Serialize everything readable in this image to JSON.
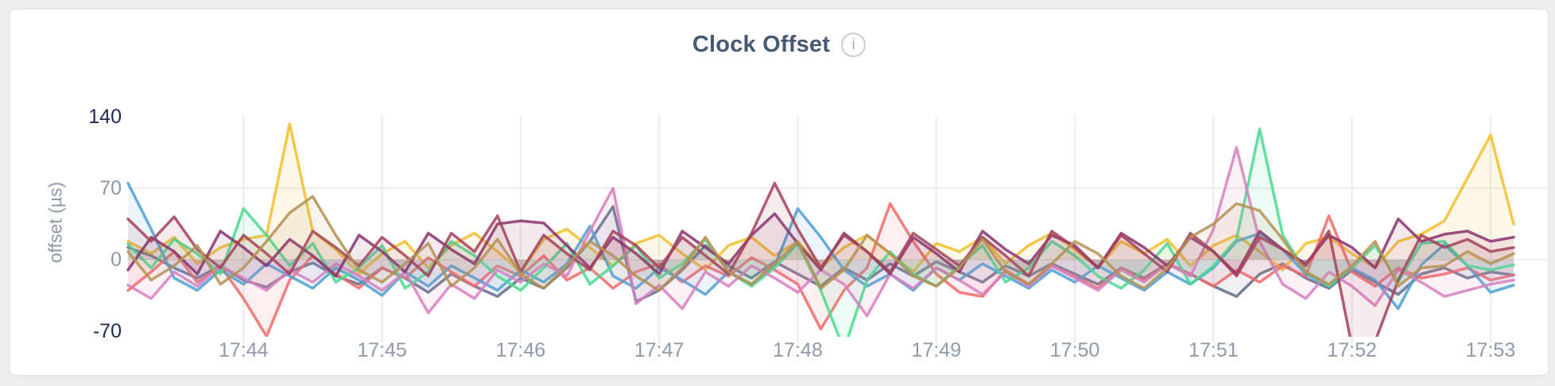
{
  "page": {
    "background": "#eeeef0"
  },
  "card": {
    "title": "Clock Offset",
    "info_glyph": "i",
    "title_color": "#475872",
    "background": "#ffffff",
    "border_color": "#e3e4e8"
  },
  "chart_data": {
    "type": "line",
    "title": "Clock Offset",
    "xlabel": "",
    "ylabel": "offset (µs)",
    "unit": "µs",
    "ylim": [
      -70,
      140
    ],
    "y_ticks": [
      140,
      70,
      0,
      -70
    ],
    "y_gridline_values": [
      70,
      0
    ],
    "grid": "on",
    "legend": "hidden",
    "x_start_label": "17:43:10",
    "x_step_seconds": 10,
    "x_ticks": [
      {
        "label": "17:44",
        "t": 50
      },
      {
        "label": "17:45",
        "t": 110
      },
      {
        "label": "17:46",
        "t": 170
      },
      {
        "label": "17:47",
        "t": 230
      },
      {
        "label": "17:48",
        "t": 290
      },
      {
        "label": "17:49",
        "t": 350
      },
      {
        "label": "17:50",
        "t": 410
      },
      {
        "label": "17:51",
        "t": 470
      },
      {
        "label": "17:52",
        "t": 530
      },
      {
        "label": "17:53",
        "t": 590
      }
    ],
    "axis_colors": {
      "tick_label": "#8e99a9",
      "domain_label": "#1d2c4e",
      "gridline": "#ececee"
    },
    "line_opacity": 0.85,
    "fill_opacity": 0.1,
    "line_width": 3.5,
    "series": [
      {
        "name": "series-1",
        "color": "#5F6C87",
        "values": [
          12,
          4,
          -8,
          -18,
          -6,
          -20,
          -27,
          -12,
          -3,
          -16,
          -24,
          -8,
          -18,
          -32,
          -14,
          -26,
          -36,
          -18,
          -28,
          -8,
          18,
          52,
          -41,
          -30,
          -10,
          14,
          -6,
          -18,
          -2,
          -14,
          -26,
          -8,
          -20,
          -4,
          -16,
          -2,
          -12,
          -22,
          -6,
          -16,
          -4,
          -14,
          -24,
          -8,
          -18,
          -4,
          -14,
          -26,
          -36,
          -14,
          -4,
          -18,
          -28,
          -10,
          -22,
          -34,
          -14,
          -8,
          -18,
          -12,
          -15
        ]
      },
      {
        "name": "series-2",
        "color": "#F2BE2C",
        "values": [
          18,
          6,
          22,
          -4,
          12,
          20,
          24,
          133,
          28,
          10,
          -14,
          6,
          18,
          -8,
          14,
          26,
          8,
          -12,
          20,
          30,
          12,
          -6,
          16,
          24,
          6,
          -10,
          14,
          22,
          4,
          18,
          -8,
          12,
          24,
          6,
          -12,
          16,
          8,
          22,
          -4,
          14,
          26,
          10,
          -8,
          18,
          6,
          20,
          -6,
          14,
          24,
          8,
          -10,
          16,
          22,
          6,
          -8,
          18,
          25,
          38,
          80,
          122,
          35
        ]
      },
      {
        "name": "series-3",
        "color": "#F16969",
        "values": [
          -30,
          -12,
          8,
          -22,
          -6,
          -38,
          -75,
          -20,
          4,
          -14,
          -28,
          -8,
          -18,
          2,
          -12,
          -26,
          -6,
          -16,
          4,
          -20,
          -8,
          -28,
          -12,
          -4,
          -22,
          -6,
          -16,
          2,
          -10,
          -24,
          -68,
          -30,
          -8,
          55,
          18,
          -14,
          -32,
          -36,
          -10,
          -24,
          -6,
          -16,
          -28,
          -8,
          -20,
          -4,
          -14,
          -26,
          -10,
          -22,
          -6,
          -16,
          43,
          -12,
          -26,
          -8,
          -18,
          -14,
          -8,
          -20,
          -15
        ]
      },
      {
        "name": "series-4",
        "color": "#4E9FD1",
        "values": [
          75,
          30,
          -18,
          -30,
          -10,
          -24,
          -4,
          -16,
          -28,
          -8,
          -20,
          -35,
          -12,
          -26,
          -6,
          -18,
          -30,
          -10,
          -22,
          -4,
          33,
          -16,
          -28,
          -8,
          -20,
          -34,
          -12,
          -24,
          -6,
          50,
          22,
          -10,
          -26,
          -14,
          -30,
          -8,
          -20,
          -4,
          -16,
          -28,
          -10,
          -22,
          -6,
          -18,
          -30,
          -12,
          -24,
          -8,
          18,
          26,
          10,
          -14,
          -26,
          -8,
          -20,
          -48,
          -5,
          15,
          -6,
          -32,
          -25
        ]
      },
      {
        "name": "series-5",
        "color": "#49D990",
        "values": [
          15,
          -8,
          20,
          6,
          -14,
          50,
          24,
          -6,
          16,
          -22,
          -8,
          14,
          -28,
          -12,
          18,
          4,
          -16,
          -30,
          -8,
          16,
          -24,
          -6,
          14,
          -18,
          -4,
          20,
          -12,
          -26,
          -8,
          16,
          -30,
          -88,
          -20,
          8,
          -14,
          -26,
          -6,
          14,
          -22,
          -8,
          18,
          4,
          -16,
          -28,
          -10,
          16,
          -24,
          -6,
          20,
          128,
          24,
          -12,
          -26,
          -8,
          14,
          -22,
          16,
          18,
          -6,
          -10,
          -5
        ]
      },
      {
        "name": "series-6",
        "color": "#D77FBF",
        "values": [
          -25,
          -38,
          -12,
          -26,
          -6,
          -18,
          -30,
          -10,
          -22,
          -4,
          -16,
          -30,
          -12,
          -52,
          -24,
          -38,
          -10,
          -22,
          -4,
          -16,
          28,
          70,
          -43,
          -25,
          -48,
          -12,
          -26,
          -6,
          -18,
          -32,
          -10,
          -24,
          -55,
          -14,
          -28,
          -8,
          -20,
          -34,
          -12,
          -26,
          -6,
          -18,
          -30,
          -10,
          -22,
          -4,
          -16,
          30,
          110,
          18,
          -24,
          -38,
          -12,
          -26,
          -45,
          -10,
          -22,
          -36,
          -30,
          -24,
          -20
        ]
      },
      {
        "name": "series-7",
        "color": "#87326D",
        "values": [
          -10,
          22,
          8,
          -14,
          28,
          12,
          -6,
          20,
          4,
          -16,
          24,
          8,
          -12,
          26,
          10,
          -4,
          35,
          38,
          36,
          14,
          -8,
          22,
          6,
          -14,
          28,
          12,
          -4,
          24,
          45,
          16,
          -10,
          26,
          8,
          -14,
          22,
          6,
          -12,
          28,
          10,
          -4,
          24,
          14,
          -8,
          26,
          12,
          -6,
          22,
          8,
          -14,
          28,
          10,
          -4,
          24,
          12,
          -8,
          40,
          18,
          25,
          28,
          18,
          22
        ]
      },
      {
        "name": "series-8",
        "color": "#A3415B",
        "values": [
          40,
          18,
          42,
          10,
          -8,
          24,
          6,
          -14,
          28,
          12,
          -6,
          22,
          4,
          -16,
          26,
          8,
          43,
          -12,
          24,
          6,
          -10,
          28,
          14,
          -8,
          22,
          4,
          -14,
          26,
          75,
          30,
          -8,
          24,
          8,
          -12,
          26,
          10,
          -6,
          22,
          4,
          -16,
          28,
          12,
          -8,
          24,
          6,
          -12,
          26,
          8,
          -16,
          22,
          10,
          -6,
          28,
          -85,
          -80,
          -20,
          24,
          12,
          20,
          8,
          12
        ]
      },
      {
        "name": "series-9",
        "color": "#B59153",
        "values": [
          8,
          -20,
          -6,
          14,
          -24,
          -8,
          18,
          46,
          62,
          24,
          -10,
          -22,
          -4,
          16,
          -26,
          -8,
          20,
          -14,
          -28,
          -6,
          18,
          4,
          -16,
          -30,
          -8,
          22,
          -12,
          -24,
          -4,
          18,
          -28,
          -10,
          24,
          6,
          -16,
          -26,
          -8,
          20,
          -12,
          -24,
          -4,
          18,
          6,
          -16,
          -28,
          -8,
          22,
          35,
          55,
          48,
          20,
          -12,
          -24,
          -6,
          18,
          -26,
          -8,
          -6,
          8,
          -4,
          6
        ]
      }
    ]
  }
}
